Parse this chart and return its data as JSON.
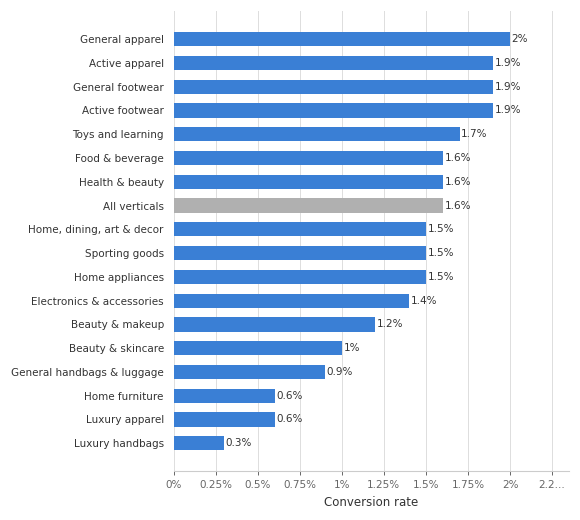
{
  "categories": [
    "Luxury handbags",
    "Luxury apparel",
    "Home furniture",
    "General handbags & luggage",
    "Beauty & skincare",
    "Beauty & makeup",
    "Electronics & accessories",
    "Home appliances",
    "Sporting goods",
    "Home, dining, art & decor",
    "All verticals",
    "Health & beauty",
    "Food & beverage",
    "Toys and learning",
    "Active footwear",
    "General footwear",
    "Active apparel",
    "General apparel"
  ],
  "values": [
    0.3,
    0.6,
    0.6,
    0.9,
    1.0,
    1.2,
    1.4,
    1.5,
    1.5,
    1.5,
    1.6,
    1.6,
    1.6,
    1.7,
    1.9,
    1.9,
    1.9,
    2.0
  ],
  "labels": [
    "0.3%",
    "0.6%",
    "0.6%",
    "0.9%",
    "1%",
    "1.2%",
    "1.4%",
    "1.5%",
    "1.5%",
    "1.5%",
    "1.6%",
    "1.6%",
    "1.6%",
    "1.7%",
    "1.9%",
    "1.9%",
    "1.9%",
    "2%"
  ],
  "bar_colors": [
    "#3a7fd5",
    "#3a7fd5",
    "#3a7fd5",
    "#3a7fd5",
    "#3a7fd5",
    "#3a7fd5",
    "#3a7fd5",
    "#3a7fd5",
    "#3a7fd5",
    "#3a7fd5",
    "#b0b0b0",
    "#3a7fd5",
    "#3a7fd5",
    "#3a7fd5",
    "#3a7fd5",
    "#3a7fd5",
    "#3a7fd5",
    "#3a7fd5"
  ],
  "xlabel": "Conversion rate",
  "xlim": [
    0,
    2.35
  ],
  "xticks": [
    0,
    0.25,
    0.5,
    0.75,
    1.0,
    1.25,
    1.5,
    1.75,
    2.0,
    2.25
  ],
  "xtick_labels": [
    "0%",
    "0.25%",
    "0.5%",
    "0.75%",
    "1%",
    "1.25%",
    "1.5%",
    "1.75%",
    "2%",
    "2.2..."
  ],
  "background_color": "#ffffff",
  "bar_height": 0.6,
  "label_fontsize": 7.5,
  "tick_fontsize": 7.5,
  "xlabel_fontsize": 8.5
}
